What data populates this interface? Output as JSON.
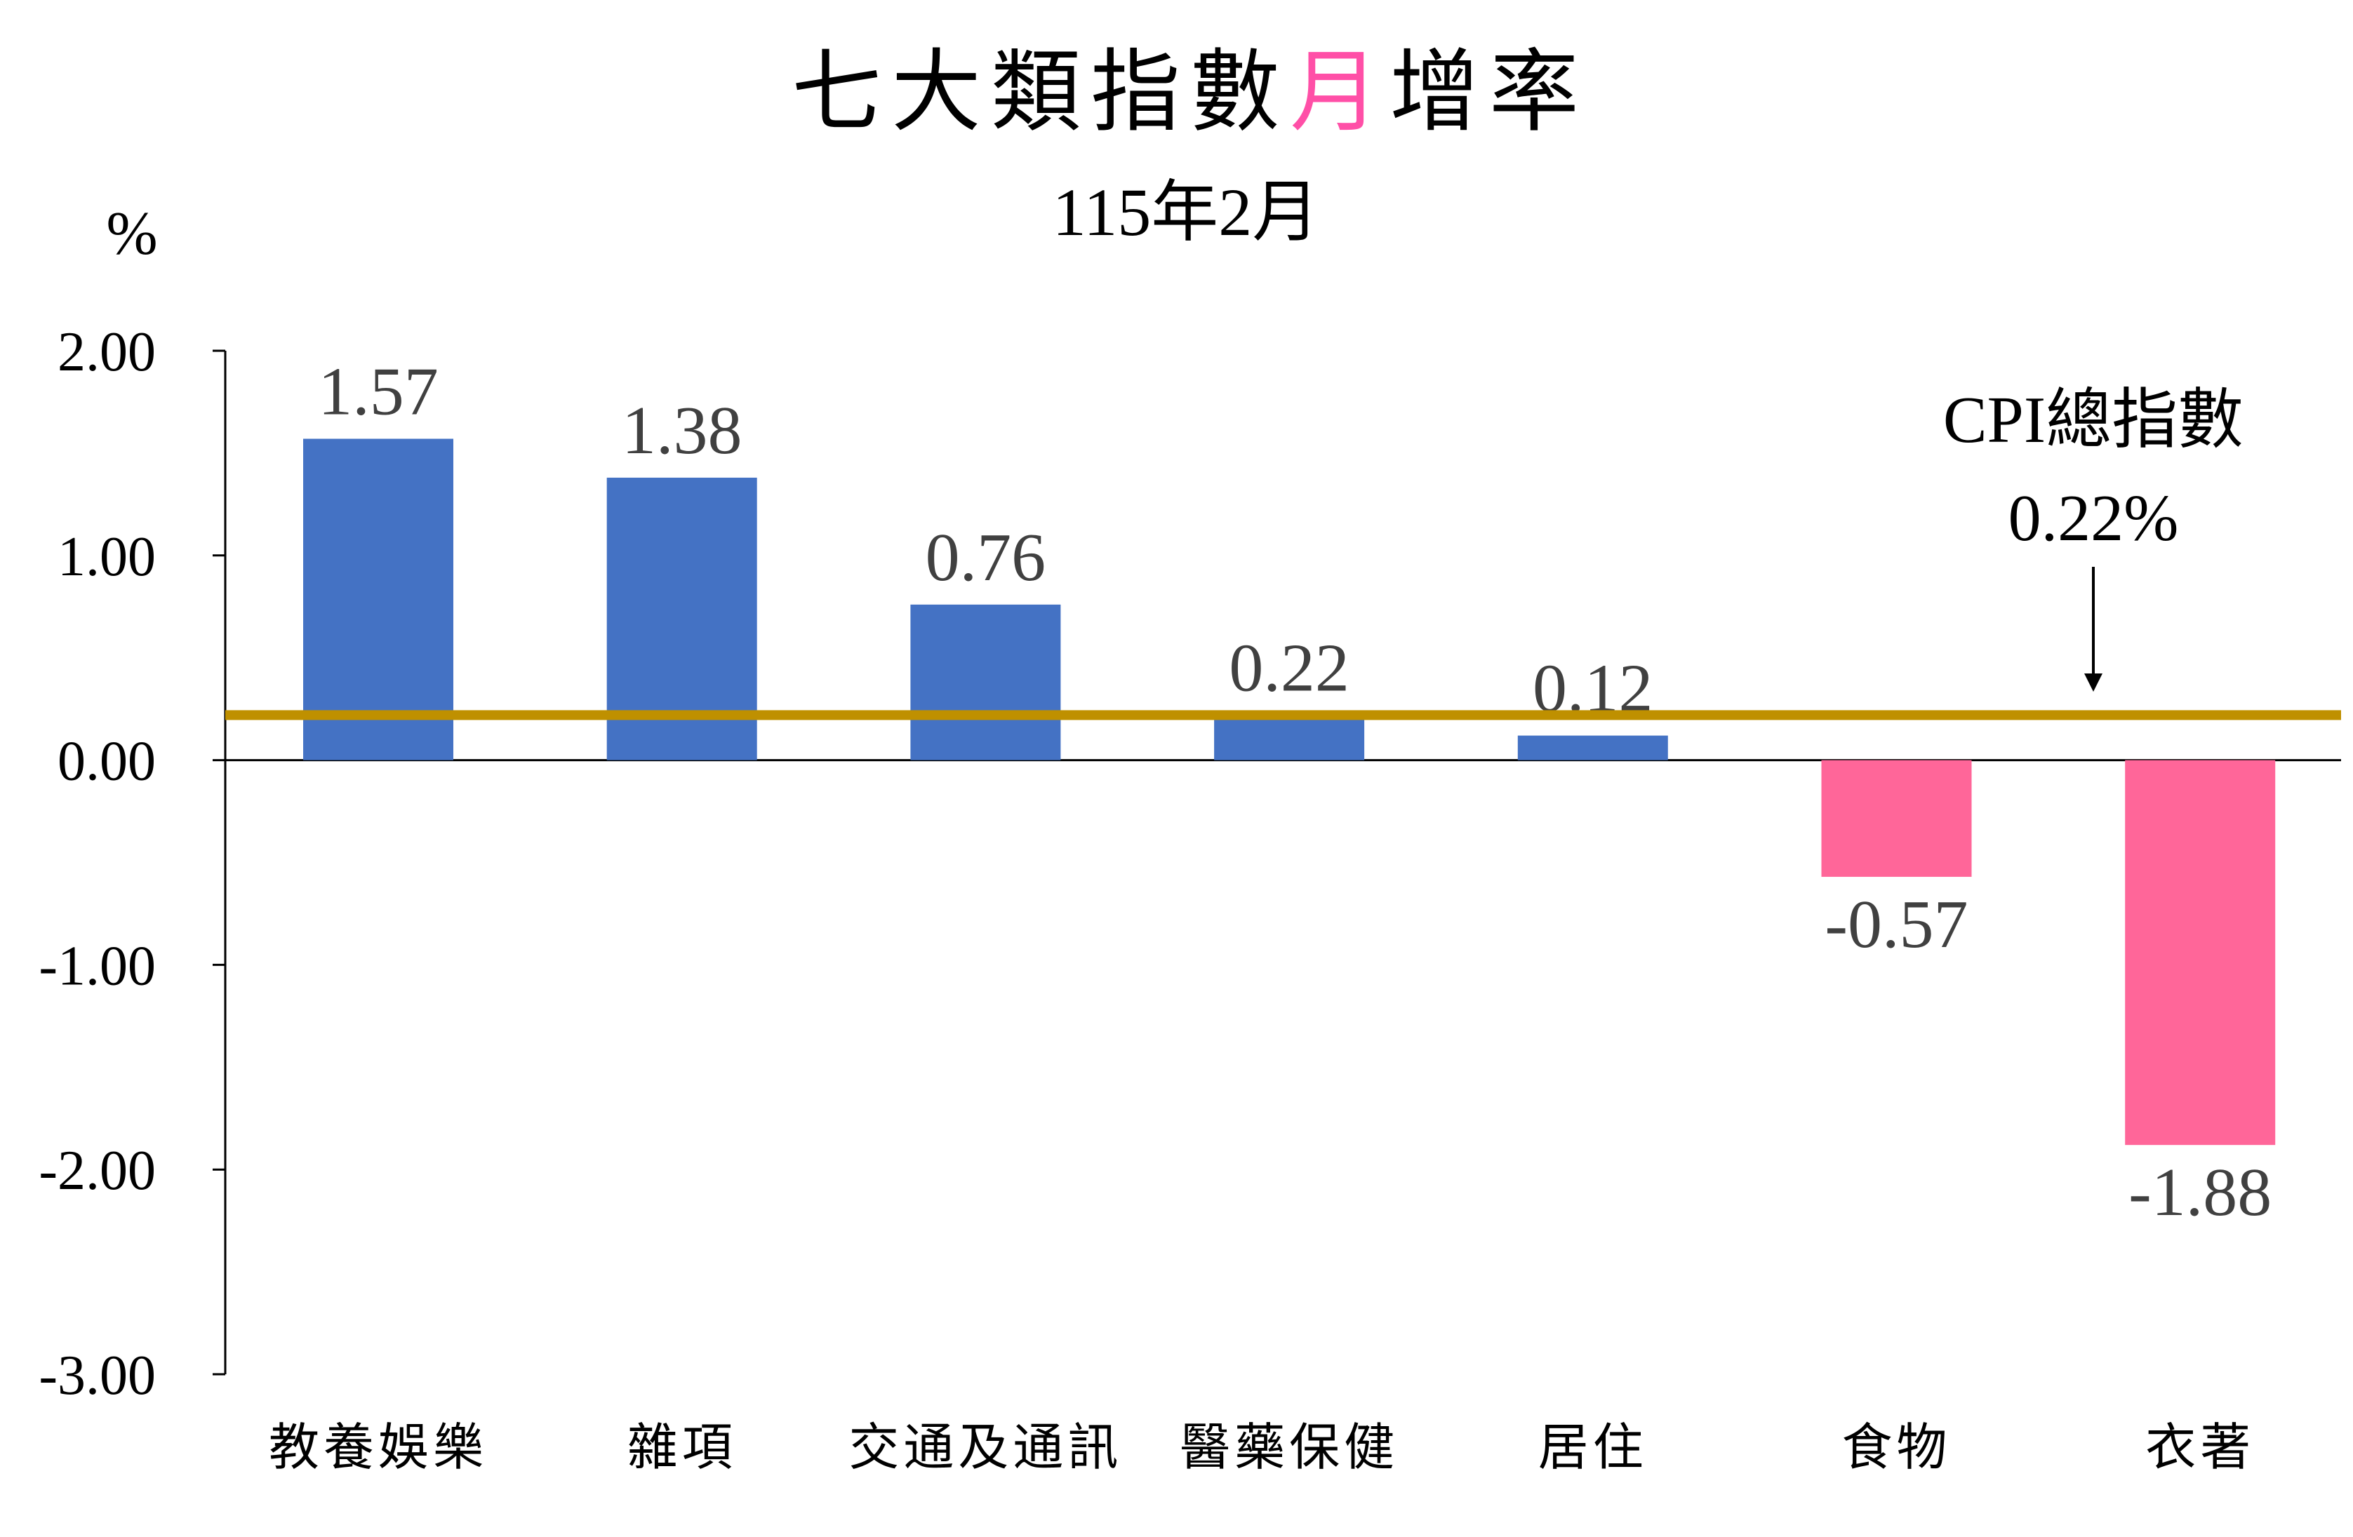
{
  "chart_data": {
    "type": "bar",
    "title_parts": [
      {
        "text": "七大類指數",
        "color": "#000000"
      },
      {
        "text": "月",
        "color": "#FF4FA7"
      },
      {
        "text": "增率",
        "color": "#000000"
      }
    ],
    "subtitle": "115年2月",
    "ylabel": "%",
    "ylim": [
      -3,
      2
    ],
    "yticks": [
      "2.00",
      "1.00",
      "0.00",
      "-1.00",
      "-2.00",
      "-3.00"
    ],
    "ytick_values": [
      2,
      1,
      0,
      -1,
      -2,
      -3
    ],
    "categories": [
      "教養娛樂",
      "雜項",
      "交通及通訊",
      "醫藥保健",
      "居住",
      "食物",
      "衣著"
    ],
    "values": [
      1.57,
      1.38,
      0.76,
      0.22,
      0.12,
      -0.57,
      -1.88
    ],
    "data_labels": [
      "1.57",
      "1.38",
      "0.76",
      "0.22",
      "0.12",
      "-0.57",
      "-1.88"
    ],
    "colors": {
      "positive": "#4472C4",
      "negative": "#FF6699",
      "reference_line": "#BF9000"
    },
    "reference_line": {
      "value": 0.22,
      "label": "CPI總指數",
      "value_label": "0.22%"
    },
    "grid": false,
    "legend": "none"
  }
}
